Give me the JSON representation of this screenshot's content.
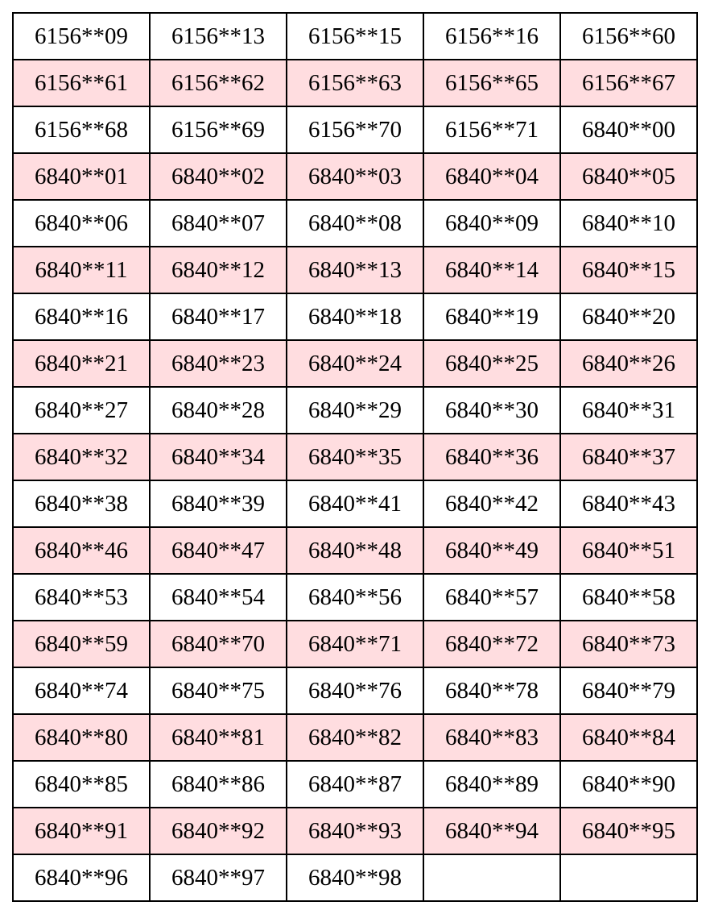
{
  "colors": {
    "alt_row_background": "#FFDDE0",
    "border": "#000000"
  },
  "rows": [
    [
      "6156**09",
      "6156**13",
      "6156**15",
      "6156**16",
      "6156**60"
    ],
    [
      "6156**61",
      "6156**62",
      "6156**63",
      "6156**65",
      "6156**67"
    ],
    [
      "6156**68",
      "6156**69",
      "6156**70",
      "6156**71",
      "6840**00"
    ],
    [
      "6840**01",
      "6840**02",
      "6840**03",
      "6840**04",
      "6840**05"
    ],
    [
      "6840**06",
      "6840**07",
      "6840**08",
      "6840**09",
      "6840**10"
    ],
    [
      "6840**11",
      "6840**12",
      "6840**13",
      "6840**14",
      "6840**15"
    ],
    [
      "6840**16",
      "6840**17",
      "6840**18",
      "6840**19",
      "6840**20"
    ],
    [
      "6840**21",
      "6840**23",
      "6840**24",
      "6840**25",
      "6840**26"
    ],
    [
      "6840**27",
      "6840**28",
      "6840**29",
      "6840**30",
      "6840**31"
    ],
    [
      "6840**32",
      "6840**34",
      "6840**35",
      "6840**36",
      "6840**37"
    ],
    [
      "6840**38",
      "6840**39",
      "6840**41",
      "6840**42",
      "6840**43"
    ],
    [
      "6840**46",
      "6840**47",
      "6840**48",
      "6840**49",
      "6840**51"
    ],
    [
      "6840**53",
      "6840**54",
      "6840**56",
      "6840**57",
      "6840**58"
    ],
    [
      "6840**59",
      "6840**70",
      "6840**71",
      "6840**72",
      "6840**73"
    ],
    [
      "6840**74",
      "6840**75",
      "6840**76",
      "6840**78",
      "6840**79"
    ],
    [
      "6840**80",
      "6840**81",
      "6840**82",
      "6840**83",
      "6840**84"
    ],
    [
      "6840**85",
      "6840**86",
      "6840**87",
      "6840**89",
      "6840**90"
    ],
    [
      "6840**91",
      "6840**92",
      "6840**93",
      "6840**94",
      "6840**95"
    ],
    [
      "6840**96",
      "6840**97",
      "6840**98",
      "",
      ""
    ]
  ]
}
